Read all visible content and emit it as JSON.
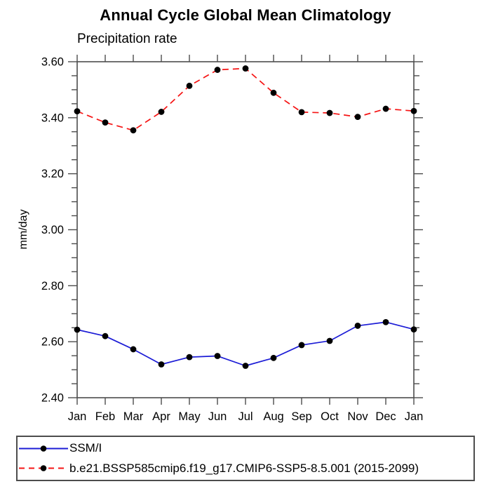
{
  "chart_data": {
    "type": "line",
    "title": "Annual Cycle Global Mean Climatology",
    "subtitle": "Precipitation rate",
    "ylabel": "mm/day",
    "xlabel": "",
    "x_categories": [
      "Jan",
      "Feb",
      "Mar",
      "Apr",
      "May",
      "Jun",
      "Jul",
      "Aug",
      "Sep",
      "Oct",
      "Nov",
      "Dec",
      "Jan"
    ],
    "ylim": [
      2.4,
      3.6
    ],
    "ytick_labels": [
      "3.60",
      "3.40",
      "3.20",
      "3.00",
      "2.80",
      "2.60",
      "2.40"
    ],
    "ytick_major_interval": 0.2,
    "ytick_minor_interval": 0.05,
    "grid": false,
    "legend_position": "bottom-left-box",
    "axis_color": "#4d4d4d",
    "marker": "filled-circle",
    "marker_color": "#000000",
    "series": [
      {
        "name": "SSM/I",
        "color": "#1c1cd6",
        "line_style": "solid",
        "values": [
          2.643,
          2.62,
          2.573,
          2.519,
          2.545,
          2.549,
          2.514,
          2.542,
          2.588,
          2.603,
          2.657,
          2.67,
          2.644
        ]
      },
      {
        "name": "b.e21.BSSP585cmip6.f19_g17.CMIP6-SSP5-8.5.001 (2015-2099)",
        "color": "#f51414",
        "line_style": "dashed",
        "values": [
          3.423,
          3.383,
          3.355,
          3.421,
          3.514,
          3.571,
          3.576,
          3.489,
          3.42,
          3.417,
          3.403,
          3.432,
          3.424
        ]
      }
    ]
  }
}
